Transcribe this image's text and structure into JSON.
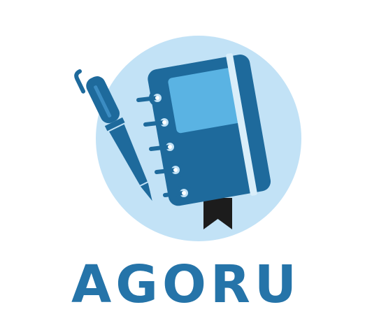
{
  "brand": {
    "name": "AGORU",
    "icon": "notebook-and-pen-icon"
  },
  "colors": {
    "circle": "#c2e2f6",
    "primary": "#2574a9",
    "notebook_cover": "#1e6a9c",
    "notebook_window": "#5ab3e3",
    "notebook_band": "#d9eefa",
    "bookmark": "#1c1c1c",
    "text": "#2574a9"
  }
}
